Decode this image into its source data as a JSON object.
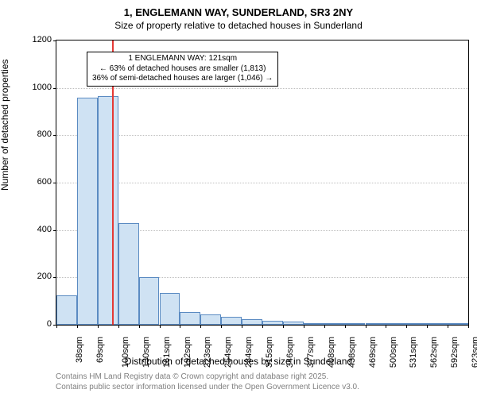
{
  "title_line1": "1, ENGLEMANN WAY, SUNDERLAND, SR3 2NY",
  "title_line2": "Size of property relative to detached houses in Sunderland",
  "ylabel": "Number of detached properties",
  "xlabel": "Distribution of detached houses by size in Sunderland",
  "footer1": "Contains HM Land Registry data © Crown copyright and database right 2025.",
  "footer2": "Contains public sector information licensed under the Open Government Licence v3.0.",
  "chart": {
    "type": "histogram",
    "ylim": [
      0,
      1200
    ],
    "ytick_step": 200,
    "yticks": [
      0,
      200,
      400,
      600,
      800,
      1000,
      1200
    ],
    "xticks": [
      "38sqm",
      "69sqm",
      "100sqm",
      "130sqm",
      "161sqm",
      "192sqm",
      "223sqm",
      "254sqm",
      "284sqm",
      "315sqm",
      "346sqm",
      "377sqm",
      "408sqm",
      "438sqm",
      "469sqm",
      "500sqm",
      "531sqm",
      "562sqm",
      "592sqm",
      "623sqm",
      "654sqm"
    ],
    "bars": [
      125,
      960,
      965,
      430,
      200,
      135,
      55,
      45,
      35,
      22,
      18,
      12,
      8,
      4,
      2,
      0,
      0,
      0,
      0,
      0
    ],
    "bar_fill": "#cfe2f3",
    "bar_stroke": "#5b8bc2",
    "grid_color": "#bfbfbf",
    "background": "#ffffff",
    "marker_line": {
      "value_sqm": 121,
      "color": "#e53935"
    },
    "annotation": {
      "line1": "1 ENGLEMANN WAY: 121sqm",
      "line2": "← 63% of detached houses are smaller (1,813)",
      "line3": "36% of semi-detached houses are larger (1,046) →"
    }
  }
}
